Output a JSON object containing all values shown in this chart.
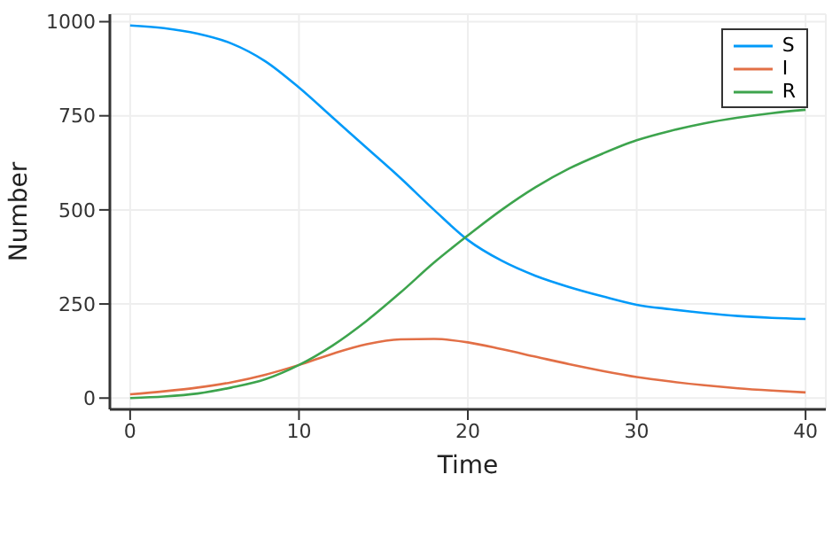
{
  "chart_data": {
    "type": "line",
    "xlabel": "Time",
    "ylabel": "Number",
    "x": [
      0,
      2,
      4,
      6,
      8,
      10,
      12,
      14,
      16,
      18,
      20,
      22,
      24,
      26,
      28,
      30,
      32,
      34,
      36,
      38,
      40
    ],
    "series": [
      {
        "name": "S",
        "color": "#009af9",
        "values": [
          990,
          983,
          968,
          942,
          895,
          825,
          745,
          665,
          585,
          500,
          420,
          365,
          325,
          295,
          270,
          248,
          236,
          226,
          218,
          213,
          210
        ]
      },
      {
        "name": "I",
        "color": "#e26f46",
        "values": [
          10,
          18,
          28,
          42,
          62,
          88,
          118,
          143,
          156,
          157,
          148,
          130,
          110,
          90,
          72,
          56,
          44,
          34,
          26,
          20,
          15
        ]
      },
      {
        "name": "R",
        "color": "#3da44d",
        "values": [
          0,
          4,
          12,
          28,
          50,
          88,
          140,
          205,
          280,
          360,
          432,
          500,
          560,
          610,
          650,
          685,
          710,
          730,
          745,
          757,
          766
        ]
      }
    ],
    "xlim": [
      -1.2,
      41.2
    ],
    "ylim": [
      -30,
      1020
    ],
    "xticks": [
      0,
      10,
      20,
      30,
      40
    ],
    "yticks": [
      0,
      250,
      500,
      750,
      1000
    ],
    "grid": true,
    "legend": "top right",
    "marker": "none",
    "line_style": "solid"
  }
}
